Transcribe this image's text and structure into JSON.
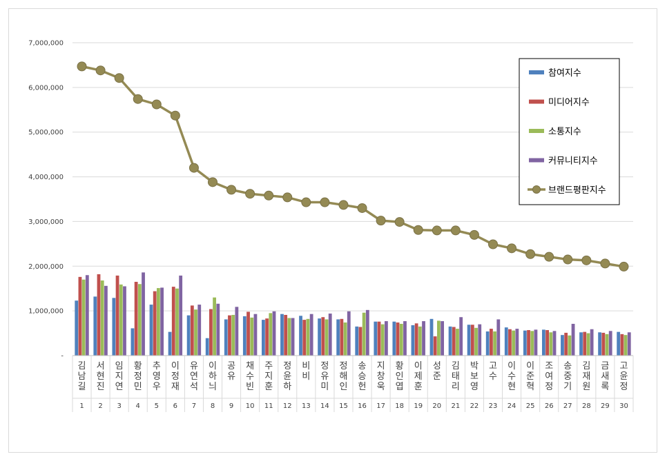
{
  "chart_data": {
    "type": "bar",
    "categories": [
      "김남길",
      "서현진",
      "임지연",
      "황정민",
      "추영우",
      "이정재",
      "유연석",
      "이하늬",
      "공유",
      "채수빈",
      "주지훈",
      "정윤하",
      "비비",
      "정유미",
      "정해인",
      "송승헌",
      "지창욱",
      "황인엽",
      "이제훈",
      "성준",
      "김태리",
      "박보영",
      "고수",
      "이수현",
      "이준혁",
      "조여정",
      "송중기",
      "김재원",
      "금새록",
      "고윤정"
    ],
    "category_numbers": [
      "1",
      "2",
      "3",
      "4",
      "5",
      "6",
      "7",
      "8",
      "9",
      "10",
      "11",
      "12",
      "13",
      "14",
      "15",
      "16",
      "17",
      "18",
      "19",
      "20",
      "21",
      "22",
      "23",
      "24",
      "25",
      "26",
      "27",
      "28",
      "29",
      "30"
    ],
    "ylim": [
      0,
      7000000
    ],
    "yticks": [
      "-",
      "1,000,000",
      "2,000,000",
      "3,000,000",
      "4,000,000",
      "5,000,000",
      "6,000,000",
      "7,000,000"
    ],
    "grid": true,
    "legend_position": "top-right",
    "series": [
      {
        "name": "참여지수",
        "type": "bar",
        "color": "#4f81bd",
        "values": [
          1230000,
          1320000,
          1290000,
          610000,
          1140000,
          530000,
          900000,
          390000,
          810000,
          880000,
          800000,
          930000,
          890000,
          830000,
          810000,
          650000,
          760000,
          760000,
          680000,
          820000,
          650000,
          690000,
          540000,
          630000,
          560000,
          580000,
          460000,
          520000,
          520000,
          530000
        ]
      },
      {
        "name": "미디어지수",
        "type": "bar",
        "color": "#c0504d",
        "values": [
          1760000,
          1820000,
          1790000,
          1650000,
          1440000,
          1540000,
          1120000,
          1040000,
          900000,
          980000,
          830000,
          910000,
          800000,
          860000,
          820000,
          640000,
          760000,
          740000,
          720000,
          430000,
          640000,
          690000,
          600000,
          590000,
          570000,
          570000,
          510000,
          530000,
          510000,
          480000
        ]
      },
      {
        "name": "소통지수",
        "type": "bar",
        "color": "#9bbb59",
        "values": [
          1700000,
          1680000,
          1590000,
          1600000,
          1510000,
          1500000,
          1030000,
          1300000,
          910000,
          850000,
          950000,
          840000,
          820000,
          810000,
          740000,
          960000,
          700000,
          710000,
          650000,
          780000,
          600000,
          620000,
          540000,
          560000,
          550000,
          520000,
          450000,
          500000,
          480000,
          460000
        ]
      },
      {
        "name": "커뮤니티지수",
        "type": "bar",
        "color": "#8064a2",
        "values": [
          1800000,
          1560000,
          1550000,
          1860000,
          1520000,
          1790000,
          1140000,
          1160000,
          1090000,
          930000,
          990000,
          840000,
          930000,
          940000,
          990000,
          1020000,
          770000,
          770000,
          770000,
          770000,
          860000,
          700000,
          810000,
          600000,
          580000,
          550000,
          710000,
          590000,
          550000,
          520000
        ]
      },
      {
        "name": "브랜드평판지수",
        "type": "line",
        "color": "#948a54",
        "values": [
          6470000,
          6380000,
          6210000,
          5740000,
          5620000,
          5370000,
          4200000,
          3880000,
          3710000,
          3620000,
          3580000,
          3540000,
          3430000,
          3430000,
          3370000,
          3300000,
          3020000,
          2990000,
          2810000,
          2800000,
          2800000,
          2700000,
          2490000,
          2400000,
          2270000,
          2210000,
          2150000,
          2130000,
          2060000,
          1990000
        ]
      }
    ]
  }
}
